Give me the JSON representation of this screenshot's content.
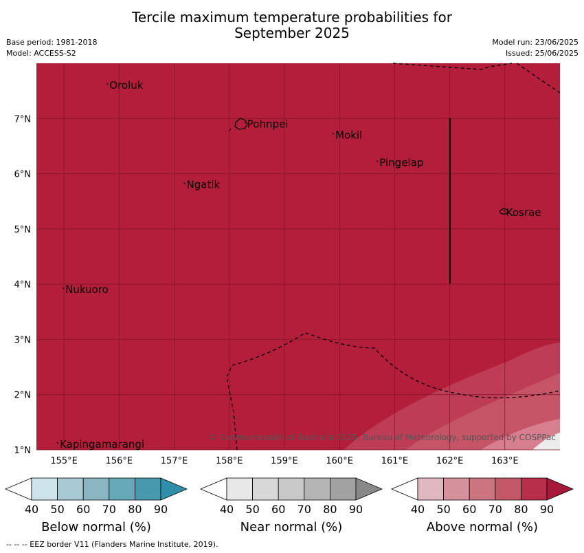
{
  "header": {
    "title_line1": "Tercile maximum temperature probabilities for",
    "title_line2": "September 2025",
    "base_period": "Base period: 1981-2018",
    "model": "Model: ACCESS-S2",
    "model_run": "Model run: 23/06/2025",
    "issued": "Issued: 25/06/2025"
  },
  "map": {
    "lon_range": [
      154.5,
      164.0
    ],
    "lat_range": [
      1.0,
      8.0
    ],
    "lon_ticks": [
      "155°E",
      "156°E",
      "157°E",
      "158°E",
      "159°E",
      "160°E",
      "161°E",
      "162°E",
      "163°E"
    ],
    "lat_ticks": [
      "1°N",
      "2°N",
      "3°N",
      "4°N",
      "5°N",
      "6°N",
      "7°N"
    ],
    "base_color": "#b31e3a",
    "grid": true,
    "places": [
      {
        "name": "Oroluk",
        "lon": 155.8,
        "lat": 7.6
      },
      {
        "name": "Pohnpei",
        "lon": 158.3,
        "lat": 6.9
      },
      {
        "name": "Mokil",
        "lon": 159.9,
        "lat": 6.7
      },
      {
        "name": "Pingelap",
        "lon": 160.7,
        "lat": 6.2
      },
      {
        "name": "Ngatik",
        "lon": 157.2,
        "lat": 5.8
      },
      {
        "name": "Kosrae",
        "lon": 163.0,
        "lat": 5.3
      },
      {
        "name": "Nukuoro",
        "lon": 155.0,
        "lat": 3.9
      },
      {
        "name": "Kapingamarangi",
        "lon": 154.9,
        "lat": 1.1
      }
    ],
    "copyright": "© Commonwealth of Australia 2025, Bureau of Meteorology, supported by COSPPac"
  },
  "colorbars": [
    {
      "label": "Below normal (%)",
      "ticks": [
        "40",
        "50",
        "60",
        "70",
        "80",
        "90"
      ],
      "colors": [
        "#cde4ea",
        "#a8cbd3",
        "#89b6c2",
        "#66a8b8",
        "#4799ad",
        "#2f8ea8"
      ]
    },
    {
      "label": "Near normal (%)",
      "ticks": [
        "40",
        "50",
        "60",
        "70",
        "80",
        "90"
      ],
      "colors": [
        "#e8e8e8",
        "#d8d8d8",
        "#c8c8c8",
        "#b4b4b4",
        "#a2a2a2",
        "#888888"
      ]
    },
    {
      "label": "Above normal (%)",
      "ticks": [
        "40",
        "50",
        "60",
        "70",
        "80",
        "90"
      ],
      "colors": [
        "#e2b8c0",
        "#d6929c",
        "#cc7480",
        "#c45868",
        "#b72f4a",
        "#a81838"
      ]
    }
  ],
  "footer": {
    "eez_note": "--  --  -- EEZ border V11 (Flanders Marine Institute, 2019)."
  }
}
